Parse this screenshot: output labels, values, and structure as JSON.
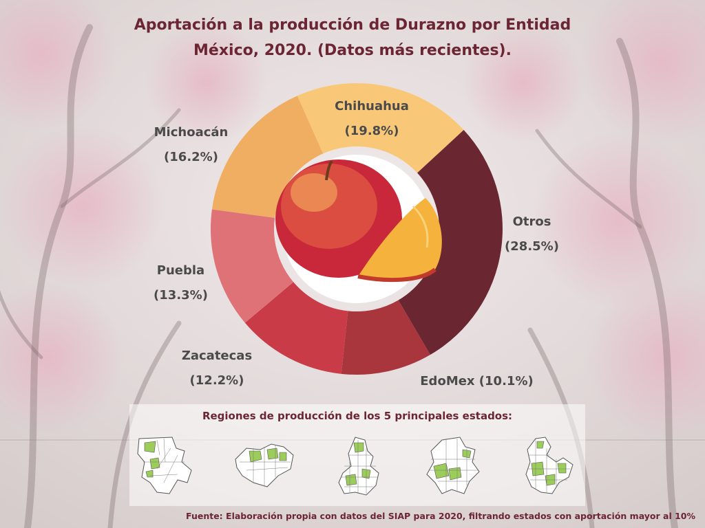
{
  "title": {
    "line1": "Aportación a la producción de Durazno por Entidad",
    "line2": "México, 2020. (Datos más recientes)."
  },
  "chart_data": {
    "type": "pie",
    "donut": true,
    "start_category": "Chihuahua",
    "direction": "clockwise",
    "categories": [
      "Chihuahua",
      "Otros",
      "EdoMex",
      "Zacatecas",
      "Puebla",
      "Michoacán"
    ],
    "values": [
      19.8,
      28.5,
      10.1,
      12.2,
      13.3,
      16.2
    ],
    "value_labels": [
      "(19.8%)",
      "(28.5%)",
      "(10.1%)",
      "(12.2%)",
      "(13.3%)",
      "(16.2%)"
    ],
    "colors": [
      "#f8c878",
      "#6b2731",
      "#a8363c",
      "#c83b47",
      "#df7277",
      "#efae61"
    ],
    "legend": "none",
    "center_icon": "peach-image"
  },
  "labels": {
    "chihuahua": {
      "name": "Chihuahua",
      "pct": "(19.8%)"
    },
    "otros": {
      "name": "Otros",
      "pct": "(28.5%)"
    },
    "edomex": {
      "text": "EdoMex (10.1%)"
    },
    "zacatecas": {
      "name": "Zacatecas",
      "pct": "(12.2%)"
    },
    "puebla": {
      "name": "Puebla",
      "pct": "(13.3%)"
    },
    "michoacan": {
      "name": "Michoacán",
      "pct": "(16.2%)"
    }
  },
  "maps": {
    "title": "Regiones de producción de los 5 principales estados:",
    "highlight_color": "#9ccc5a",
    "items": [
      "chihuahua-map-icon",
      "michoacan-map-icon",
      "edomex-map-icon",
      "zacatecas-map-icon",
      "puebla-map-icon"
    ]
  },
  "background_icon": "blossoming-peach-orchard",
  "source": "Fuente: Elaboración propia con datos del SIAP para 2020, filtrando estados con aportación mayor al 10%"
}
